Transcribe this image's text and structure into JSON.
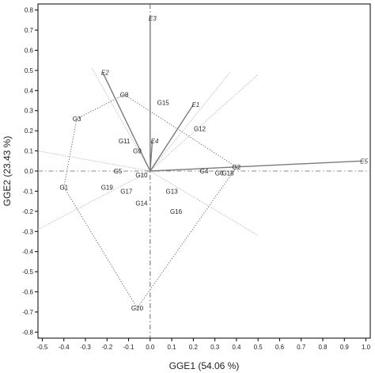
{
  "chart_data": {
    "type": "scatter",
    "title": "",
    "xlabel": "GGE1 (54.06 %)",
    "ylabel": "GGE2 (23.43 %)",
    "xlim": [
      -0.52,
      1.02
    ],
    "ylim": [
      -0.83,
      0.83
    ],
    "xticks": [
      -0.5,
      -0.4,
      -0.3,
      -0.2,
      -0.1,
      0.0,
      0.1,
      0.2,
      0.3,
      0.4,
      0.5,
      0.6,
      0.7,
      0.8,
      0.9,
      1.0
    ],
    "yticks": [
      0.8,
      0.7,
      0.6,
      0.5,
      0.4,
      0.3,
      0.2,
      0.1,
      0.0,
      -0.1,
      -0.2,
      -0.3,
      -0.4,
      -0.5,
      -0.6,
      -0.7,
      -0.8
    ],
    "tick_labels_x": [
      "-0.5",
      "-0.4",
      "-0.3",
      "-0.2",
      "-0.1",
      "0.0",
      "0.1",
      "0.2",
      "0.3",
      "0.4",
      "0.5",
      "0.6",
      "0.7",
      "0.8",
      "0.9",
      "1.0"
    ],
    "tick_labels_y": [
      "0.8",
      "0.7",
      "0.6",
      "0.5",
      "0.4",
      "0.3",
      "0.2",
      "0.1",
      "0.0",
      "-0.1",
      "-0.2",
      "-0.3",
      "-0.4",
      "-0.5",
      "-0.6",
      "-0.7",
      "-0.8"
    ],
    "genotypes": [
      {
        "label": "G1",
        "x": -0.4,
        "y": -0.08
      },
      {
        "label": "G2",
        "x": 0.4,
        "y": 0.02
      },
      {
        "label": "G3",
        "x": -0.34,
        "y": 0.26
      },
      {
        "label": "G4",
        "x": 0.25,
        "y": 0.0
      },
      {
        "label": "G5",
        "x": -0.15,
        "y": 0.0
      },
      {
        "label": "G6",
        "x": 0.32,
        "y": -0.01
      },
      {
        "label": "G8",
        "x": -0.12,
        "y": 0.38
      },
      {
        "label": "G9",
        "x": -0.06,
        "y": 0.1
      },
      {
        "label": "G10",
        "x": -0.04,
        "y": -0.02
      },
      {
        "label": "G11",
        "x": -0.12,
        "y": 0.15
      },
      {
        "label": "G12",
        "x": 0.23,
        "y": 0.21
      },
      {
        "label": "G13",
        "x": 0.1,
        "y": -0.1
      },
      {
        "label": "G14",
        "x": -0.04,
        "y": -0.16
      },
      {
        "label": "G15",
        "x": 0.06,
        "y": 0.34
      },
      {
        "label": "G16",
        "x": 0.12,
        "y": -0.2
      },
      {
        "label": "G17",
        "x": -0.11,
        "y": -0.1
      },
      {
        "label": "G18",
        "x": 0.36,
        "y": -0.01
      },
      {
        "label": "G19",
        "x": -0.2,
        "y": -0.08
      },
      {
        "label": "G20",
        "x": -0.06,
        "y": -0.68
      }
    ],
    "environments": [
      {
        "label": "E1",
        "x": 0.2,
        "y": 0.33
      },
      {
        "label": "E2",
        "x": -0.22,
        "y": 0.49
      },
      {
        "label": "E3",
        "x": 0.0,
        "y": 0.76
      },
      {
        "label": "E4",
        "x": 0.01,
        "y": 0.15
      },
      {
        "label": "E5",
        "x": 0.98,
        "y": 0.05
      }
    ],
    "polygon": [
      "G3",
      "G8",
      "G2",
      "G20",
      "G1"
    ],
    "sector_rays": [
      {
        "to": [
          -0.52,
          0.1
        ]
      },
      {
        "to": [
          -0.27,
          0.51
        ]
      },
      {
        "to": [
          0.37,
          0.49
        ]
      },
      {
        "to": [
          0.5,
          0.48
        ]
      },
      {
        "to": [
          0.5,
          -0.32
        ]
      },
      {
        "to": [
          -0.52,
          -0.29
        ]
      }
    ],
    "grid": false,
    "legend": "none"
  }
}
